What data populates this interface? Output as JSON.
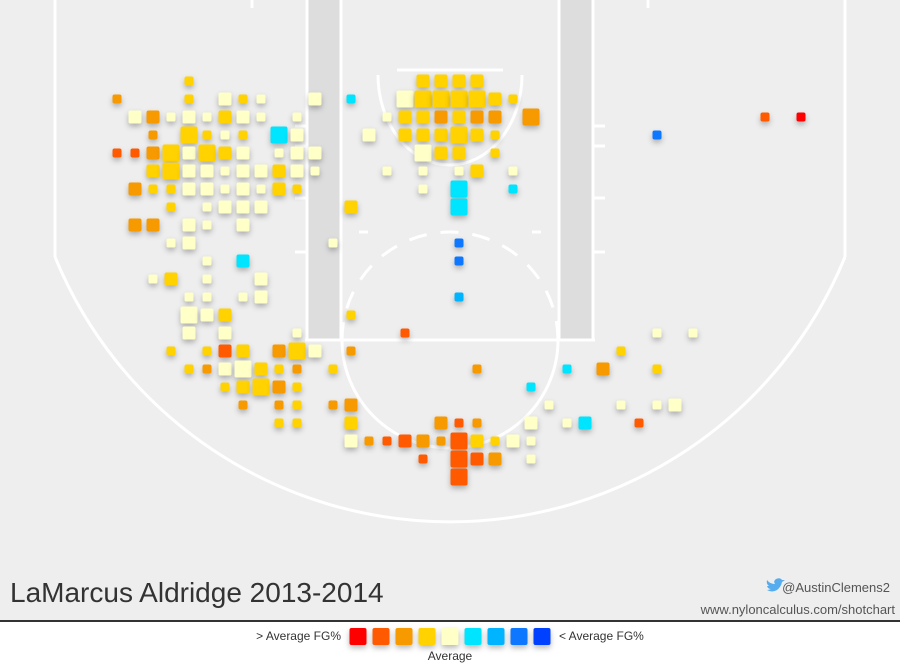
{
  "chart_data": {
    "type": "shot-chart",
    "title": "LaMarcus Aldridge 2013-2014",
    "credit_handle": "@AustinClemens2",
    "credit_url": "www.nyloncalculus.com/shotchart",
    "legend": {
      "left_label": "> Average FG%",
      "right_label": "< Average FG%",
      "center_label": "Average",
      "colors": [
        "#ff0000",
        "#ff5a00",
        "#f79a00",
        "#ffd200",
        "#ffffc8",
        "#00e5ff",
        "#00b4ff",
        "#0a78ff",
        "#0040ff"
      ]
    },
    "xlim": [
      -0.5,
      49.5
    ],
    "ylim": [
      -0.5,
      33
    ],
    "shots": [
      {
        "x": 10,
        "y": 4,
        "size": 1,
        "level": 3
      },
      {
        "x": 23,
        "y": 4,
        "size": 2,
        "level": 3
      },
      {
        "x": 24,
        "y": 4,
        "size": 2,
        "level": 3
      },
      {
        "x": 25,
        "y": 4,
        "size": 2,
        "level": 3
      },
      {
        "x": 26,
        "y": 4,
        "size": 2,
        "level": 3
      },
      {
        "x": 6,
        "y": 5,
        "size": 1,
        "level": 2
      },
      {
        "x": 10,
        "y": 5,
        "size": 1,
        "level": 3
      },
      {
        "x": 12,
        "y": 5,
        "size": 2,
        "level": 4
      },
      {
        "x": 13,
        "y": 5,
        "size": 1,
        "level": 3
      },
      {
        "x": 14,
        "y": 5,
        "size": 1,
        "level": 4
      },
      {
        "x": 17,
        "y": 5,
        "size": 2,
        "level": 4
      },
      {
        "x": 19,
        "y": 5,
        "size": 1,
        "level": 5
      },
      {
        "x": 22,
        "y": 5,
        "size": 3,
        "level": 4
      },
      {
        "x": 23,
        "y": 5,
        "size": 3,
        "level": 3
      },
      {
        "x": 24,
        "y": 5,
        "size": 3,
        "level": 3
      },
      {
        "x": 25,
        "y": 5,
        "size": 3,
        "level": 3
      },
      {
        "x": 26,
        "y": 5,
        "size": 3,
        "level": 3
      },
      {
        "x": 27,
        "y": 5,
        "size": 2,
        "level": 3
      },
      {
        "x": 28,
        "y": 5,
        "size": 1,
        "level": 3
      },
      {
        "x": 7,
        "y": 6,
        "size": 2,
        "level": 4
      },
      {
        "x": 8,
        "y": 6,
        "size": 2,
        "level": 2
      },
      {
        "x": 9,
        "y": 6,
        "size": 1,
        "level": 4
      },
      {
        "x": 10,
        "y": 6,
        "size": 2,
        "level": 4
      },
      {
        "x": 11,
        "y": 6,
        "size": 1,
        "level": 4
      },
      {
        "x": 12,
        "y": 6,
        "size": 2,
        "level": 3
      },
      {
        "x": 13,
        "y": 6,
        "size": 2,
        "level": 4
      },
      {
        "x": 14,
        "y": 6,
        "size": 1,
        "level": 4
      },
      {
        "x": 16,
        "y": 6,
        "size": 1,
        "level": 4
      },
      {
        "x": 21,
        "y": 6,
        "size": 1,
        "level": 4
      },
      {
        "x": 22,
        "y": 6,
        "size": 2,
        "level": 3
      },
      {
        "x": 23,
        "y": 6,
        "size": 2,
        "level": 3
      },
      {
        "x": 24,
        "y": 6,
        "size": 2,
        "level": 2
      },
      {
        "x": 25,
        "y": 6,
        "size": 2,
        "level": 3
      },
      {
        "x": 26,
        "y": 6,
        "size": 2,
        "level": 2
      },
      {
        "x": 27,
        "y": 6,
        "size": 2,
        "level": 2
      },
      {
        "x": 29,
        "y": 6,
        "size": 3,
        "level": 2
      },
      {
        "x": 42,
        "y": 6,
        "size": 1,
        "level": 1
      },
      {
        "x": 44,
        "y": 6,
        "size": 1,
        "level": 0
      },
      {
        "x": 8,
        "y": 7,
        "size": 1,
        "level": 2
      },
      {
        "x": 10,
        "y": 7,
        "size": 3,
        "level": 3
      },
      {
        "x": 11,
        "y": 7,
        "size": 1,
        "level": 3
      },
      {
        "x": 12,
        "y": 7,
        "size": 1,
        "level": 4
      },
      {
        "x": 13,
        "y": 7,
        "size": 1,
        "level": 3
      },
      {
        "x": 15,
        "y": 7,
        "size": 3,
        "level": 5
      },
      {
        "x": 16,
        "y": 7,
        "size": 2,
        "level": 4
      },
      {
        "x": 20,
        "y": 7,
        "size": 2,
        "level": 4
      },
      {
        "x": 22,
        "y": 7,
        "size": 2,
        "level": 3
      },
      {
        "x": 23,
        "y": 7,
        "size": 2,
        "level": 3
      },
      {
        "x": 24,
        "y": 7,
        "size": 2,
        "level": 3
      },
      {
        "x": 25,
        "y": 7,
        "size": 3,
        "level": 3
      },
      {
        "x": 26,
        "y": 7,
        "size": 2,
        "level": 3
      },
      {
        "x": 27,
        "y": 7,
        "size": 1,
        "level": 3
      },
      {
        "x": 36,
        "y": 7,
        "size": 1,
        "level": 7
      },
      {
        "x": 6,
        "y": 8,
        "size": 1,
        "level": 1
      },
      {
        "x": 7,
        "y": 8,
        "size": 1,
        "level": 1
      },
      {
        "x": 8,
        "y": 8,
        "size": 2,
        "level": 2
      },
      {
        "x": 9,
        "y": 8,
        "size": 3,
        "level": 3
      },
      {
        "x": 10,
        "y": 8,
        "size": 2,
        "level": 4
      },
      {
        "x": 11,
        "y": 8,
        "size": 3,
        "level": 3
      },
      {
        "x": 12,
        "y": 8,
        "size": 2,
        "level": 3
      },
      {
        "x": 13,
        "y": 8,
        "size": 2,
        "level": 4
      },
      {
        "x": 15,
        "y": 8,
        "size": 1,
        "level": 4
      },
      {
        "x": 16,
        "y": 8,
        "size": 2,
        "level": 4
      },
      {
        "x": 17,
        "y": 8,
        "size": 2,
        "level": 4
      },
      {
        "x": 23,
        "y": 8,
        "size": 3,
        "level": 4
      },
      {
        "x": 24,
        "y": 8,
        "size": 2,
        "level": 3
      },
      {
        "x": 25,
        "y": 8,
        "size": 2,
        "level": 3
      },
      {
        "x": 27,
        "y": 8,
        "size": 1,
        "level": 3
      },
      {
        "x": 8,
        "y": 9,
        "size": 2,
        "level": 3
      },
      {
        "x": 9,
        "y": 9,
        "size": 3,
        "level": 3
      },
      {
        "x": 10,
        "y": 9,
        "size": 2,
        "level": 4
      },
      {
        "x": 11,
        "y": 9,
        "size": 2,
        "level": 4
      },
      {
        "x": 12,
        "y": 9,
        "size": 1,
        "level": 4
      },
      {
        "x": 13,
        "y": 9,
        "size": 2,
        "level": 4
      },
      {
        "x": 14,
        "y": 9,
        "size": 2,
        "level": 4
      },
      {
        "x": 15,
        "y": 9,
        "size": 2,
        "level": 3
      },
      {
        "x": 16,
        "y": 9,
        "size": 2,
        "level": 4
      },
      {
        "x": 17,
        "y": 9,
        "size": 1,
        "level": 4
      },
      {
        "x": 21,
        "y": 9,
        "size": 1,
        "level": 4
      },
      {
        "x": 23,
        "y": 9,
        "size": 1,
        "level": 4
      },
      {
        "x": 25,
        "y": 9,
        "size": 1,
        "level": 4
      },
      {
        "x": 26,
        "y": 9,
        "size": 2,
        "level": 3
      },
      {
        "x": 28,
        "y": 9,
        "size": 1,
        "level": 4
      },
      {
        "x": 7,
        "y": 10,
        "size": 2,
        "level": 2
      },
      {
        "x": 8,
        "y": 10,
        "size": 1,
        "level": 3
      },
      {
        "x": 9,
        "y": 10,
        "size": 1,
        "level": 3
      },
      {
        "x": 10,
        "y": 10,
        "size": 2,
        "level": 4
      },
      {
        "x": 11,
        "y": 10,
        "size": 2,
        "level": 4
      },
      {
        "x": 12,
        "y": 10,
        "size": 1,
        "level": 4
      },
      {
        "x": 13,
        "y": 10,
        "size": 2,
        "level": 4
      },
      {
        "x": 14,
        "y": 10,
        "size": 1,
        "level": 4
      },
      {
        "x": 15,
        "y": 10,
        "size": 2,
        "level": 3
      },
      {
        "x": 16,
        "y": 10,
        "size": 1,
        "level": 3
      },
      {
        "x": 23,
        "y": 10,
        "size": 1,
        "level": 4
      },
      {
        "x": 25,
        "y": 10,
        "size": 3,
        "level": 5
      },
      {
        "x": 28,
        "y": 10,
        "size": 1,
        "level": 5
      },
      {
        "x": 9,
        "y": 11,
        "size": 1,
        "level": 3
      },
      {
        "x": 11,
        "y": 11,
        "size": 1,
        "level": 4
      },
      {
        "x": 12,
        "y": 11,
        "size": 2,
        "level": 4
      },
      {
        "x": 13,
        "y": 11,
        "size": 2,
        "level": 4
      },
      {
        "x": 14,
        "y": 11,
        "size": 2,
        "level": 4
      },
      {
        "x": 19,
        "y": 11,
        "size": 2,
        "level": 3
      },
      {
        "x": 25,
        "y": 11,
        "size": 3,
        "level": 5
      },
      {
        "x": 7,
        "y": 12,
        "size": 2,
        "level": 2
      },
      {
        "x": 8,
        "y": 12,
        "size": 2,
        "level": 2
      },
      {
        "x": 10,
        "y": 12,
        "size": 2,
        "level": 4
      },
      {
        "x": 11,
        "y": 12,
        "size": 1,
        "level": 4
      },
      {
        "x": 13,
        "y": 12,
        "size": 2,
        "level": 4
      },
      {
        "x": 9,
        "y": 13,
        "size": 1,
        "level": 4
      },
      {
        "x": 10,
        "y": 13,
        "size": 2,
        "level": 4
      },
      {
        "x": 18,
        "y": 13,
        "size": 1,
        "level": 4
      },
      {
        "x": 25,
        "y": 13,
        "size": 1,
        "level": 7
      },
      {
        "x": 11,
        "y": 14,
        "size": 1,
        "level": 4
      },
      {
        "x": 13,
        "y": 14,
        "size": 2,
        "level": 5
      },
      {
        "x": 25,
        "y": 14,
        "size": 1,
        "level": 7
      },
      {
        "x": 8,
        "y": 15,
        "size": 1,
        "level": 4
      },
      {
        "x": 9,
        "y": 15,
        "size": 2,
        "level": 3
      },
      {
        "x": 11,
        "y": 15,
        "size": 1,
        "level": 4
      },
      {
        "x": 14,
        "y": 15,
        "size": 2,
        "level": 4
      },
      {
        "x": 10,
        "y": 16,
        "size": 1,
        "level": 4
      },
      {
        "x": 11,
        "y": 16,
        "size": 1,
        "level": 4
      },
      {
        "x": 13,
        "y": 16,
        "size": 1,
        "level": 4
      },
      {
        "x": 14,
        "y": 16,
        "size": 2,
        "level": 4
      },
      {
        "x": 25,
        "y": 16,
        "size": 1,
        "level": 6
      },
      {
        "x": 10,
        "y": 17,
        "size": 3,
        "level": 4
      },
      {
        "x": 11,
        "y": 17,
        "size": 2,
        "level": 4
      },
      {
        "x": 12,
        "y": 17,
        "size": 2,
        "level": 3
      },
      {
        "x": 19,
        "y": 17,
        "size": 1,
        "level": 3
      },
      {
        "x": 10,
        "y": 18,
        "size": 2,
        "level": 4
      },
      {
        "x": 12,
        "y": 18,
        "size": 2,
        "level": 4
      },
      {
        "x": 16,
        "y": 18,
        "size": 1,
        "level": 4
      },
      {
        "x": 22,
        "y": 18,
        "size": 1,
        "level": 1
      },
      {
        "x": 36,
        "y": 18,
        "size": 1,
        "level": 4
      },
      {
        "x": 38,
        "y": 18,
        "size": 1,
        "level": 4
      },
      {
        "x": 9,
        "y": 19,
        "size": 1,
        "level": 3
      },
      {
        "x": 11,
        "y": 19,
        "size": 1,
        "level": 3
      },
      {
        "x": 12,
        "y": 19,
        "size": 2,
        "level": 1
      },
      {
        "x": 13,
        "y": 19,
        "size": 2,
        "level": 3
      },
      {
        "x": 15,
        "y": 19,
        "size": 2,
        "level": 2
      },
      {
        "x": 16,
        "y": 19,
        "size": 3,
        "level": 3
      },
      {
        "x": 17,
        "y": 19,
        "size": 2,
        "level": 4
      },
      {
        "x": 19,
        "y": 19,
        "size": 1,
        "level": 2
      },
      {
        "x": 34,
        "y": 19,
        "size": 1,
        "level": 3
      },
      {
        "x": 10,
        "y": 20,
        "size": 1,
        "level": 3
      },
      {
        "x": 11,
        "y": 20,
        "size": 1,
        "level": 2
      },
      {
        "x": 12,
        "y": 20,
        "size": 2,
        "level": 4
      },
      {
        "x": 13,
        "y": 20,
        "size": 3,
        "level": 4
      },
      {
        "x": 14,
        "y": 20,
        "size": 2,
        "level": 3
      },
      {
        "x": 15,
        "y": 20,
        "size": 1,
        "level": 3
      },
      {
        "x": 16,
        "y": 20,
        "size": 1,
        "level": 2
      },
      {
        "x": 18,
        "y": 20,
        "size": 1,
        "level": 3
      },
      {
        "x": 26,
        "y": 20,
        "size": 1,
        "level": 2
      },
      {
        "x": 31,
        "y": 20,
        "size": 1,
        "level": 5
      },
      {
        "x": 33,
        "y": 20,
        "size": 2,
        "level": 2
      },
      {
        "x": 36,
        "y": 20,
        "size": 1,
        "level": 3
      },
      {
        "x": 12,
        "y": 21,
        "size": 1,
        "level": 3
      },
      {
        "x": 13,
        "y": 21,
        "size": 2,
        "level": 3
      },
      {
        "x": 14,
        "y": 21,
        "size": 3,
        "level": 3
      },
      {
        "x": 15,
        "y": 21,
        "size": 2,
        "level": 2
      },
      {
        "x": 16,
        "y": 21,
        "size": 1,
        "level": 3
      },
      {
        "x": 29,
        "y": 21,
        "size": 1,
        "level": 5
      },
      {
        "x": 13,
        "y": 22,
        "size": 1,
        "level": 2
      },
      {
        "x": 15,
        "y": 22,
        "size": 1,
        "level": 2
      },
      {
        "x": 16,
        "y": 22,
        "size": 1,
        "level": 3
      },
      {
        "x": 18,
        "y": 22,
        "size": 1,
        "level": 2
      },
      {
        "x": 19,
        "y": 22,
        "size": 2,
        "level": 2
      },
      {
        "x": 30,
        "y": 22,
        "size": 1,
        "level": 4
      },
      {
        "x": 34,
        "y": 22,
        "size": 1,
        "level": 4
      },
      {
        "x": 36,
        "y": 22,
        "size": 1,
        "level": 4
      },
      {
        "x": 37,
        "y": 22,
        "size": 2,
        "level": 4
      },
      {
        "x": 15,
        "y": 23,
        "size": 1,
        "level": 3
      },
      {
        "x": 16,
        "y": 23,
        "size": 1,
        "level": 3
      },
      {
        "x": 19,
        "y": 23,
        "size": 2,
        "level": 3
      },
      {
        "x": 24,
        "y": 23,
        "size": 2,
        "level": 2
      },
      {
        "x": 25,
        "y": 23,
        "size": 1,
        "level": 1
      },
      {
        "x": 26,
        "y": 23,
        "size": 1,
        "level": 2
      },
      {
        "x": 29,
        "y": 23,
        "size": 2,
        "level": 4
      },
      {
        "x": 31,
        "y": 23,
        "size": 1,
        "level": 4
      },
      {
        "x": 32,
        "y": 23,
        "size": 2,
        "level": 5
      },
      {
        "x": 35,
        "y": 23,
        "size": 1,
        "level": 1
      },
      {
        "x": 19,
        "y": 24,
        "size": 2,
        "level": 4
      },
      {
        "x": 20,
        "y": 24,
        "size": 1,
        "level": 2
      },
      {
        "x": 21,
        "y": 24,
        "size": 1,
        "level": 1
      },
      {
        "x": 22,
        "y": 24,
        "size": 2,
        "level": 1
      },
      {
        "x": 23,
        "y": 24,
        "size": 2,
        "level": 2
      },
      {
        "x": 24,
        "y": 24,
        "size": 1,
        "level": 2
      },
      {
        "x": 25,
        "y": 24,
        "size": 3,
        "level": 1
      },
      {
        "x": 26,
        "y": 24,
        "size": 2,
        "level": 3
      },
      {
        "x": 27,
        "y": 24,
        "size": 1,
        "level": 3
      },
      {
        "x": 28,
        "y": 24,
        "size": 2,
        "level": 4
      },
      {
        "x": 29,
        "y": 24,
        "size": 1,
        "level": 4
      },
      {
        "x": 23,
        "y": 25,
        "size": 1,
        "level": 1
      },
      {
        "x": 25,
        "y": 25,
        "size": 3,
        "level": 1
      },
      {
        "x": 26,
        "y": 25,
        "size": 2,
        "level": 1
      },
      {
        "x": 27,
        "y": 25,
        "size": 2,
        "level": 2
      },
      {
        "x": 29,
        "y": 25,
        "size": 1,
        "level": 4
      },
      {
        "x": 25,
        "y": 26,
        "size": 3,
        "level": 1
      }
    ]
  }
}
